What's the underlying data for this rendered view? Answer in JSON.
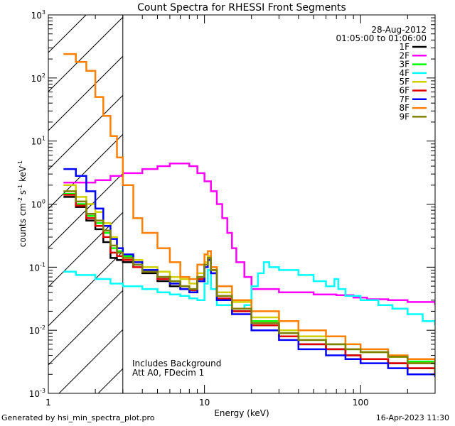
{
  "chart_data": {
    "type": "line",
    "title": "Count Spectra for RHESSI Front Segments",
    "xlabel": "Energy (keV)",
    "ylabel": "counts cm-2 s-1 keV-1",
    "xscale": "log",
    "yscale": "log",
    "xlim": [
      1,
      300
    ],
    "ylim": [
      0.001,
      1000
    ],
    "x_ticks": [
      {
        "v": 10,
        "label": "10"
      },
      {
        "v": 100,
        "label": "100"
      }
    ],
    "x_min_label": "1",
    "y_ticks": [
      {
        "v": 0.001,
        "base": "10",
        "exp": "-3"
      },
      {
        "v": 0.01,
        "base": "10",
        "exp": "-2"
      },
      {
        "v": 0.1,
        "base": "10",
        "exp": "-1"
      },
      {
        "v": 1,
        "base": "10",
        "exp": "0"
      },
      {
        "v": 10,
        "base": "10",
        "exp": "1"
      },
      {
        "v": 100,
        "base": "10",
        "exp": "2"
      },
      {
        "v": 1000,
        "base": "10",
        "exp": "3"
      }
    ],
    "date": "28-Aug-2012",
    "time_range": "01:05:00 to 01:06:00",
    "hatched_region_max_kev": 3,
    "annotations": [
      "Includes Background",
      "Att A0, FDecim 1"
    ],
    "series": [
      {
        "name": "1F",
        "color": "#000000",
        "points": [
          [
            1.25,
            1.3
          ],
          [
            1.5,
            0.9
          ],
          [
            1.75,
            0.55
          ],
          [
            2.0,
            0.4
          ],
          [
            2.25,
            0.25
          ],
          [
            2.5,
            0.14
          ],
          [
            2.75,
            0.13
          ],
          [
            3.0,
            0.12
          ],
          [
            3.5,
            0.1
          ],
          [
            4.0,
            0.08
          ],
          [
            5.0,
            0.06
          ],
          [
            6.0,
            0.05
          ],
          [
            7.0,
            0.045
          ],
          [
            8.0,
            0.04
          ],
          [
            9.0,
            0.06
          ],
          [
            10.0,
            0.1
          ],
          [
            10.5,
            0.13
          ],
          [
            11.0,
            0.08
          ],
          [
            12.0,
            0.03
          ],
          [
            15.0,
            0.02
          ],
          [
            20.0,
            0.012
          ],
          [
            30.0,
            0.008
          ],
          [
            40.0,
            0.006
          ],
          [
            60.0,
            0.005
          ],
          [
            80.0,
            0.004
          ],
          [
            100.0,
            0.0035
          ],
          [
            150.0,
            0.003
          ],
          [
            200.0,
            0.0025
          ],
          [
            300.0,
            0.002
          ]
        ]
      },
      {
        "name": "2F",
        "color": "#ff00ff",
        "points": [
          [
            1.25,
            2.2
          ],
          [
            1.5,
            2.2
          ],
          [
            2.0,
            2.4
          ],
          [
            2.5,
            2.8
          ],
          [
            3.0,
            3.1
          ],
          [
            4.0,
            3.6
          ],
          [
            5.0,
            4.0
          ],
          [
            6.0,
            4.4
          ],
          [
            7.0,
            4.4
          ],
          [
            8.0,
            4.0
          ],
          [
            9.0,
            3.1
          ],
          [
            10.0,
            2.3
          ],
          [
            11.0,
            1.6
          ],
          [
            12.0,
            1.0
          ],
          [
            13.0,
            0.6
          ],
          [
            14.0,
            0.35
          ],
          [
            15.0,
            0.2
          ],
          [
            16.0,
            0.12
          ],
          [
            18.0,
            0.07
          ],
          [
            20.0,
            0.045
          ],
          [
            30.0,
            0.04
          ],
          [
            50.0,
            0.037
          ],
          [
            70.0,
            0.036
          ],
          [
            90.0,
            0.033
          ],
          [
            110.0,
            0.031
          ],
          [
            150.0,
            0.03
          ],
          [
            200.0,
            0.028
          ],
          [
            300.0,
            0.025
          ]
        ]
      },
      {
        "name": "3F",
        "color": "#00ff00",
        "points": [
          [
            1.25,
            1.45
          ],
          [
            1.5,
            1.0
          ],
          [
            1.75,
            0.65
          ],
          [
            2.0,
            0.5
          ],
          [
            2.25,
            0.35
          ],
          [
            2.5,
            0.2
          ],
          [
            2.75,
            0.18
          ],
          [
            3.0,
            0.15
          ],
          [
            3.5,
            0.11
          ],
          [
            4.0,
            0.09
          ],
          [
            5.0,
            0.07
          ],
          [
            6.0,
            0.06
          ],
          [
            7.0,
            0.05
          ],
          [
            8.0,
            0.045
          ],
          [
            9.0,
            0.07
          ],
          [
            10.0,
            0.11
          ],
          [
            10.5,
            0.14
          ],
          [
            11.0,
            0.09
          ],
          [
            12.0,
            0.035
          ],
          [
            15.0,
            0.022
          ],
          [
            20.0,
            0.014
          ],
          [
            30.0,
            0.009
          ],
          [
            40.0,
            0.007
          ],
          [
            60.0,
            0.006
          ],
          [
            80.0,
            0.005
          ],
          [
            100.0,
            0.0045
          ],
          [
            150.0,
            0.0038
          ],
          [
            200.0,
            0.0032
          ],
          [
            300.0,
            0.0025
          ]
        ]
      },
      {
        "name": "4F",
        "color": "#00ffff",
        "points": [
          [
            1.25,
            0.085
          ],
          [
            1.5,
            0.075
          ],
          [
            2.0,
            0.065
          ],
          [
            2.5,
            0.055
          ],
          [
            3.0,
            0.05
          ],
          [
            4.0,
            0.045
          ],
          [
            5.0,
            0.04
          ],
          [
            6.0,
            0.037
          ],
          [
            7.0,
            0.035
          ],
          [
            8.0,
            0.032
          ],
          [
            9.0,
            0.03
          ],
          [
            10.0,
            0.055
          ],
          [
            10.5,
            0.09
          ],
          [
            11.0,
            0.045
          ],
          [
            12.0,
            0.025
          ],
          [
            15.0,
            0.022
          ],
          [
            18.0,
            0.025
          ],
          [
            20.0,
            0.05
          ],
          [
            22.0,
            0.08
          ],
          [
            24.0,
            0.12
          ],
          [
            26.0,
            0.1
          ],
          [
            30.0,
            0.09
          ],
          [
            40.0,
            0.075
          ],
          [
            50.0,
            0.06
          ],
          [
            60.0,
            0.05
          ],
          [
            68.0,
            0.065
          ],
          [
            72.0,
            0.045
          ],
          [
            80.0,
            0.035
          ],
          [
            100.0,
            0.03
          ],
          [
            130.0,
            0.025
          ],
          [
            160.0,
            0.022
          ],
          [
            200.0,
            0.018
          ],
          [
            250.0,
            0.014
          ],
          [
            300.0,
            0.012
          ]
        ]
      },
      {
        "name": "5F",
        "color": "#d0d000",
        "points": [
          [
            1.25,
            2.0
          ],
          [
            1.5,
            1.3
          ],
          [
            1.75,
            1.0
          ],
          [
            2.0,
            0.75
          ],
          [
            2.25,
            0.5
          ],
          [
            2.5,
            0.3
          ],
          [
            2.75,
            0.2
          ],
          [
            3.0,
            0.14
          ],
          [
            3.5,
            0.13
          ],
          [
            4.0,
            0.1
          ],
          [
            5.0,
            0.085
          ],
          [
            6.0,
            0.07
          ],
          [
            7.0,
            0.065
          ],
          [
            8.0,
            0.055
          ],
          [
            9.0,
            0.08
          ],
          [
            10.0,
            0.12
          ],
          [
            10.5,
            0.15
          ],
          [
            11.0,
            0.1
          ],
          [
            12.0,
            0.04
          ],
          [
            15.0,
            0.028
          ],
          [
            20.0,
            0.016
          ],
          [
            30.0,
            0.01
          ],
          [
            40.0,
            0.008
          ],
          [
            60.0,
            0.006
          ],
          [
            80.0,
            0.005
          ],
          [
            100.0,
            0.0045
          ],
          [
            150.0,
            0.0038
          ],
          [
            200.0,
            0.003
          ],
          [
            300.0,
            0.0025
          ]
        ]
      },
      {
        "name": "6F",
        "color": "#e00000",
        "points": [
          [
            1.25,
            1.4
          ],
          [
            1.5,
            0.95
          ],
          [
            1.75,
            0.6
          ],
          [
            2.0,
            0.45
          ],
          [
            2.25,
            0.3
          ],
          [
            2.5,
            0.17
          ],
          [
            2.75,
            0.15
          ],
          [
            3.0,
            0.13
          ],
          [
            3.5,
            0.1
          ],
          [
            4.0,
            0.085
          ],
          [
            5.0,
            0.065
          ],
          [
            6.0,
            0.055
          ],
          [
            7.0,
            0.05
          ],
          [
            8.0,
            0.043
          ],
          [
            9.0,
            0.065
          ],
          [
            10.0,
            0.11
          ],
          [
            10.5,
            0.14
          ],
          [
            11.0,
            0.09
          ],
          [
            12.0,
            0.032
          ],
          [
            15.0,
            0.02
          ],
          [
            20.0,
            0.012
          ],
          [
            30.0,
            0.008
          ],
          [
            40.0,
            0.006
          ],
          [
            60.0,
            0.005
          ],
          [
            80.0,
            0.004
          ],
          [
            100.0,
            0.0035
          ],
          [
            150.0,
            0.003
          ],
          [
            200.0,
            0.0025
          ],
          [
            300.0,
            0.002
          ]
        ]
      },
      {
        "name": "7F",
        "color": "#0000ff",
        "points": [
          [
            1.25,
            3.6
          ],
          [
            1.5,
            2.8
          ],
          [
            1.75,
            1.6
          ],
          [
            2.0,
            0.85
          ],
          [
            2.25,
            0.45
          ],
          [
            2.5,
            0.28
          ],
          [
            2.75,
            0.2
          ],
          [
            3.0,
            0.16
          ],
          [
            3.5,
            0.12
          ],
          [
            4.0,
            0.09
          ],
          [
            5.0,
            0.07
          ],
          [
            6.0,
            0.055
          ],
          [
            7.0,
            0.045
          ],
          [
            8.0,
            0.04
          ],
          [
            9.0,
            0.06
          ],
          [
            10.0,
            0.1
          ],
          [
            10.5,
            0.13
          ],
          [
            11.0,
            0.08
          ],
          [
            12.0,
            0.03
          ],
          [
            15.0,
            0.018
          ],
          [
            20.0,
            0.01
          ],
          [
            30.0,
            0.007
          ],
          [
            40.0,
            0.005
          ],
          [
            60.0,
            0.004
          ],
          [
            80.0,
            0.0035
          ],
          [
            100.0,
            0.003
          ],
          [
            150.0,
            0.0025
          ],
          [
            200.0,
            0.002
          ],
          [
            300.0,
            0.0018
          ]
        ]
      },
      {
        "name": "8F",
        "color": "#ff7f00",
        "points": [
          [
            1.25,
            240
          ],
          [
            1.5,
            180
          ],
          [
            1.75,
            130
          ],
          [
            2.0,
            50
          ],
          [
            2.25,
            25
          ],
          [
            2.5,
            12
          ],
          [
            2.75,
            5.5
          ],
          [
            3.0,
            2.0
          ],
          [
            3.5,
            0.6
          ],
          [
            4.0,
            0.35
          ],
          [
            5.0,
            0.2
          ],
          [
            6.0,
            0.12
          ],
          [
            7.0,
            0.07
          ],
          [
            8.0,
            0.065
          ],
          [
            9.0,
            0.11
          ],
          [
            10.0,
            0.16
          ],
          [
            10.5,
            0.18
          ],
          [
            11.0,
            0.1
          ],
          [
            12.0,
            0.05
          ],
          [
            15.0,
            0.03
          ],
          [
            20.0,
            0.02
          ],
          [
            30.0,
            0.014
          ],
          [
            40.0,
            0.01
          ],
          [
            60.0,
            0.008
          ],
          [
            80.0,
            0.006
          ],
          [
            100.0,
            0.005
          ],
          [
            150.0,
            0.004
          ],
          [
            200.0,
            0.0035
          ],
          [
            300.0,
            0.003
          ]
        ]
      },
      {
        "name": "9F",
        "color": "#808000",
        "points": [
          [
            1.25,
            1.6
          ],
          [
            1.5,
            1.1
          ],
          [
            1.75,
            0.7
          ],
          [
            2.0,
            0.55
          ],
          [
            2.25,
            0.38
          ],
          [
            2.5,
            0.22
          ],
          [
            2.75,
            0.17
          ],
          [
            3.0,
            0.14
          ],
          [
            3.5,
            0.11
          ],
          [
            4.0,
            0.085
          ],
          [
            5.0,
            0.07
          ],
          [
            6.0,
            0.06
          ],
          [
            7.0,
            0.05
          ],
          [
            8.0,
            0.045
          ],
          [
            9.0,
            0.07
          ],
          [
            10.0,
            0.11
          ],
          [
            10.5,
            0.14
          ],
          [
            11.0,
            0.09
          ],
          [
            12.0,
            0.035
          ],
          [
            15.0,
            0.022
          ],
          [
            20.0,
            0.013
          ],
          [
            30.0,
            0.009
          ],
          [
            40.0,
            0.007
          ],
          [
            60.0,
            0.006
          ],
          [
            80.0,
            0.005
          ],
          [
            100.0,
            0.0045
          ],
          [
            150.0,
            0.0038
          ],
          [
            200.0,
            0.003
          ],
          [
            300.0,
            0.0022
          ]
        ]
      }
    ]
  },
  "footer": {
    "left": "Generated by hsi_min_spectra_plot.pro",
    "right": "16-Apr-2023 11:30"
  }
}
